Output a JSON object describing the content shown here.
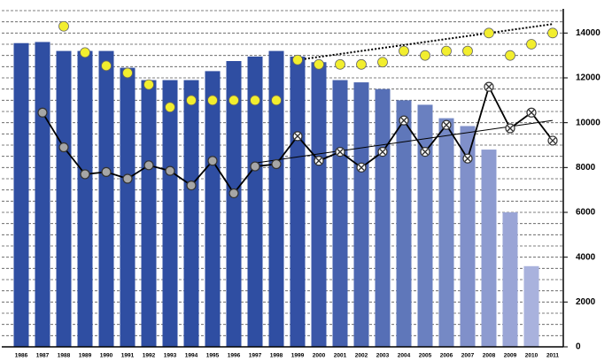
{
  "chart_data": {
    "type": "bar",
    "categories": [
      "1986",
      "1987",
      "1988",
      "1989",
      "1990",
      "1991",
      "1992",
      "1993",
      "1994",
      "1995",
      "1996",
      "1997",
      "1998",
      "1999",
      "2000",
      "2001",
      "2002",
      "2003",
      "2004",
      "2005",
      "2006",
      "2007",
      "2008",
      "2009",
      "2010",
      "2011"
    ],
    "series": [
      {
        "kind": "bar",
        "colors": [
          "#2f4ea2",
          "#2f4ea2",
          "#2f4ea2",
          "#2f4ea2",
          "#2f4ea2",
          "#2f4ea2",
          "#2f4ea2",
          "#2f4ea2",
          "#2f4ea2",
          "#2f4ea2",
          "#2f4ea2",
          "#2f4ea2",
          "#2f4ea2",
          "#3350a4",
          "#3b57a8",
          "#4560ad",
          "#4d67b1",
          "#566fb6",
          "#5f77ba",
          "#6a80c0",
          "#7589c5",
          "#8090ca",
          "#8d9bd0",
          "#9aa5d6",
          "#a9b2dd",
          null
        ],
        "values": [
          13550,
          13600,
          13200,
          13200,
          13200,
          12450,
          11900,
          11900,
          11900,
          12300,
          12750,
          12950,
          13200,
          12950,
          12700,
          11900,
          11800,
          11500,
          11000,
          10800,
          10200,
          9850,
          8800,
          6000,
          3600,
          null
        ]
      },
      {
        "kind": "dot",
        "color": "#f2ee2e",
        "values": [
          null,
          null,
          14300,
          13130,
          12540,
          12220,
          11700,
          10690,
          11000,
          11000,
          11000,
          11000,
          11000,
          12800,
          12600,
          12600,
          12600,
          12700,
          13200,
          13000,
          13200,
          13200,
          14000,
          13000,
          13500,
          14000
        ]
      },
      {
        "kind": "line-circle",
        "color": "#a6a6a6",
        "values": [
          null,
          10450,
          8900,
          7700,
          7800,
          7500,
          8100,
          7850,
          7200,
          8300,
          6850,
          8050,
          8150,
          null,
          null,
          null,
          null,
          null,
          null,
          null,
          null,
          null,
          null,
          null,
          null,
          null
        ]
      },
      {
        "kind": "line-cross",
        "color": "#ffffff",
        "values": [
          null,
          null,
          null,
          null,
          null,
          null,
          null,
          null,
          null,
          null,
          null,
          null,
          null,
          9400,
          8300,
          8700,
          8000,
          8700,
          10100,
          8700,
          9900,
          8400,
          11600,
          9750,
          10450,
          9200
        ]
      }
    ],
    "trendlines": [
      {
        "style": "dotted",
        "from": 13,
        "to": 25,
        "values": [
          12800,
          14400
        ]
      },
      {
        "style": "solid",
        "from": 11,
        "to": 25,
        "values": [
          8200,
          10100
        ]
      }
    ],
    "ylim": [
      0,
      15000
    ],
    "yticks": [
      0,
      2000,
      4000,
      6000,
      8000,
      10000,
      12000,
      14000
    ],
    "grid_step": 500,
    "grid": true
  }
}
